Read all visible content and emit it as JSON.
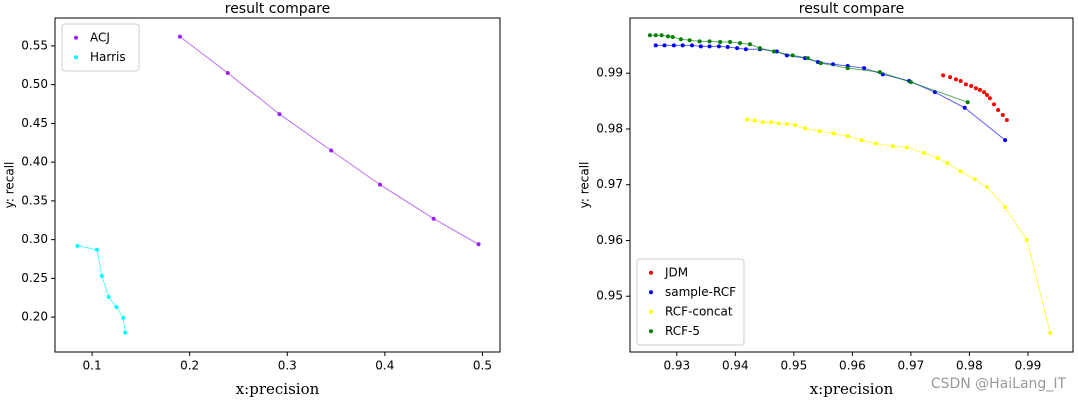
{
  "chart_data": [
    {
      "type": "line",
      "title": "result compare",
      "x_label": "x:precision",
      "y_label": "y: recall",
      "xlim": [
        0.062,
        0.518
      ],
      "ylim": [
        0.155,
        0.586
      ],
      "xticks": [
        0.1,
        0.2,
        0.3,
        0.4,
        0.5
      ],
      "yticks": [
        {
          "value": 0.2,
          "label": "0.20"
        },
        0.25,
        {
          "value": 0.3,
          "label": "0.30"
        },
        0.35,
        {
          "value": 0.4,
          "label": "0.40"
        },
        0.45,
        {
          "value": 0.5,
          "label": "0.50"
        },
        0.55
      ],
      "legend": "upper left",
      "series": [
        {
          "name": "ACJ",
          "color": "#9b1ff0",
          "x": [
            0.19,
            0.239,
            0.292,
            0.345,
            0.395,
            0.45,
            0.496
          ],
          "values": [
            0.562,
            0.515,
            0.462,
            0.415,
            0.371,
            0.327,
            0.294
          ]
        },
        {
          "name": "Harris",
          "color": "#00ffff",
          "x": [
            0.085,
            0.105,
            0.11,
            0.117,
            0.125,
            0.132,
            0.134
          ],
          "values": [
            0.292,
            0.287,
            0.253,
            0.226,
            0.213,
            0.199,
            0.18
          ]
        }
      ]
    },
    {
      "type": "line",
      "title": "result compare",
      "x_label": "x:precision",
      "y_label": "y: recall",
      "xlim": [
        0.922,
        0.9977
      ],
      "ylim": [
        0.94,
        0.9999
      ],
      "xticks": [
        0.93,
        0.94,
        0.95,
        0.96,
        0.97,
        0.98,
        0.99
      ],
      "yticks": [
        0.95,
        0.96,
        0.97,
        0.98,
        0.99
      ],
      "legend": "lower left",
      "series": [
        {
          "name": "JDM",
          "color": "#ff0000",
          "type": "scatter",
          "x": [
            0.9755,
            0.9767,
            0.9777,
            0.9785,
            0.9794,
            0.9803,
            0.9811,
            0.9818,
            0.9825,
            0.983,
            0.9835,
            0.9842,
            0.9849,
            0.9857,
            0.9864
          ],
          "values": [
            0.9896,
            0.9893,
            0.9889,
            0.9886,
            0.988,
            0.9877,
            0.9873,
            0.987,
            0.9866,
            0.9861,
            0.9855,
            0.9844,
            0.9834,
            0.9825,
            0.9816
          ]
        },
        {
          "name": "sample-RCF",
          "color": "#0000ff",
          "x": [
            0.9264,
            0.9279,
            0.9295,
            0.931,
            0.9326,
            0.9341,
            0.9356,
            0.9372,
            0.9387,
            0.9403,
            0.9418,
            0.9442,
            0.9471,
            0.9488,
            0.9519,
            0.9541,
            0.9567,
            0.9592,
            0.962,
            0.9652,
            0.9697,
            0.9741,
            0.9792,
            0.9861
          ],
          "values": [
            0.995,
            0.995,
            0.995,
            0.995,
            0.995,
            0.9948,
            0.9948,
            0.9948,
            0.9947,
            0.9945,
            0.9943,
            0.9943,
            0.9939,
            0.9932,
            0.9927,
            0.992,
            0.9916,
            0.9913,
            0.9909,
            0.9898,
            0.9886,
            0.9866,
            0.9838,
            0.978
          ]
        },
        {
          "name": "RCF-concat",
          "color": "#ffff00",
          "x": [
            0.942,
            0.9433,
            0.9447,
            0.9461,
            0.9474,
            0.9488,
            0.9502,
            0.9519,
            0.9544,
            0.9568,
            0.9592,
            0.9616,
            0.964,
            0.9669,
            0.9693,
            0.9722,
            0.9746,
            0.9762,
            0.9785,
            0.9809,
            0.983,
            0.9861,
            0.9898,
            0.9938
          ],
          "values": [
            0.9817,
            0.9815,
            0.9812,
            0.9812,
            0.981,
            0.9809,
            0.9807,
            0.9801,
            0.9796,
            0.9792,
            0.9787,
            0.978,
            0.9774,
            0.9769,
            0.9767,
            0.9757,
            0.9748,
            0.9739,
            0.9724,
            0.971,
            0.9696,
            0.966,
            0.9601,
            0.9434
          ]
        },
        {
          "name": "RCF-5",
          "color": "#007f00",
          "x": [
            0.9254,
            0.9264,
            0.9274,
            0.9285,
            0.9293,
            0.9307,
            0.9322,
            0.9339,
            0.9356,
            0.9374,
            0.9391,
            0.9408,
            0.9425,
            0.9442,
            0.9466,
            0.9498,
            0.9524,
            0.9546,
            0.9592,
            0.9647,
            0.97,
            0.9797
          ],
          "values": [
            0.9968,
            0.9968,
            0.9968,
            0.9966,
            0.9965,
            0.9961,
            0.9959,
            0.9957,
            0.9957,
            0.9956,
            0.9956,
            0.9954,
            0.9952,
            0.9945,
            0.9939,
            0.9932,
            0.9927,
            0.9918,
            0.9909,
            0.9902,
            0.9884,
            0.9848
          ]
        }
      ]
    }
  ],
  "watermark": "CSDN @HaiLang_IT"
}
